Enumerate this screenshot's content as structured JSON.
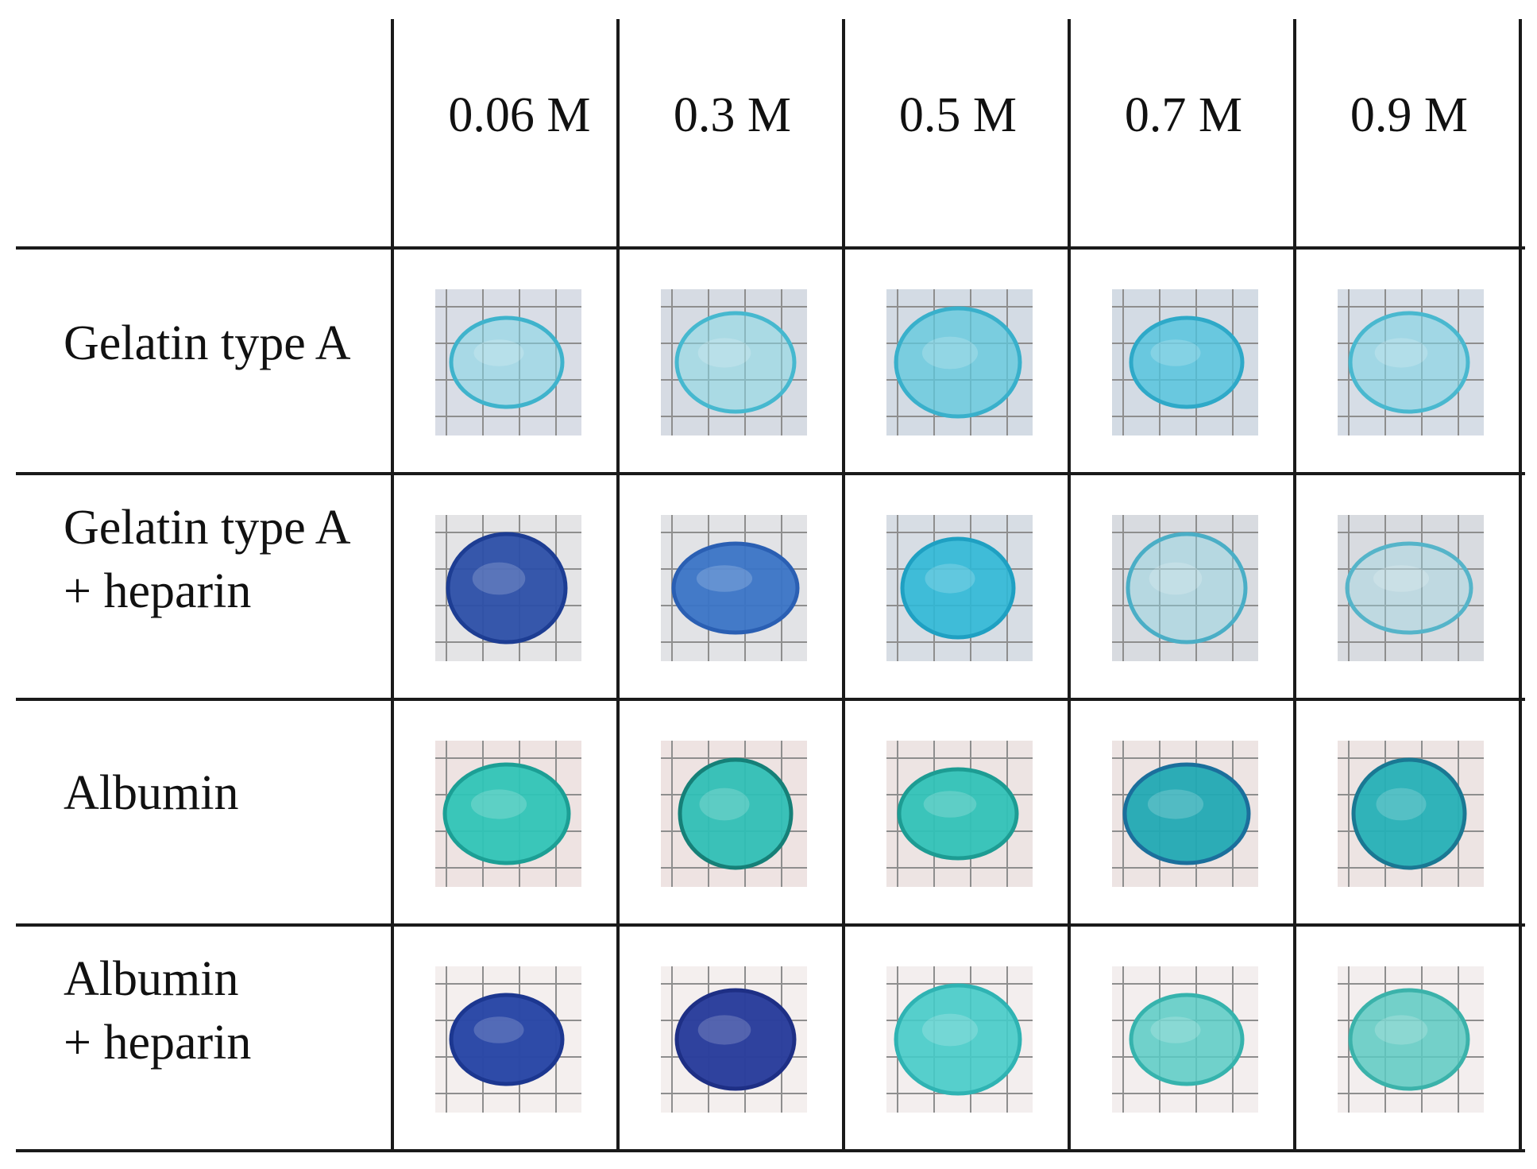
{
  "table": {
    "columns": [
      "0.06 M",
      "0.3 M",
      "0.5 M",
      "0.7 M",
      "0.9 M"
    ],
    "rows": [
      {
        "label_lines": [
          "Gelatin type A"
        ]
      },
      {
        "label_lines": [
          "Gelatin type A",
          "+ heparin"
        ]
      },
      {
        "label_lines": [
          "Albumin"
        ]
      },
      {
        "label_lines": [
          "Albumin",
          "+ heparin"
        ]
      }
    ]
  },
  "samples": [
    [
      {
        "fill": "#7fd6e6",
        "stroke": "#3fb3cc",
        "bg": "#d9dde6",
        "opacity": 0.55
      },
      {
        "fill": "#86d8e6",
        "stroke": "#46b8cf",
        "bg": "#d6dbe3",
        "opacity": 0.55
      },
      {
        "fill": "#5cc8de",
        "stroke": "#39b0cb",
        "bg": "#d3dbe4",
        "opacity": 0.75
      },
      {
        "fill": "#4fc3dd",
        "stroke": "#2ea9c8",
        "bg": "#d3dbe4",
        "opacity": 0.8
      },
      {
        "fill": "#7dd3e4",
        "stroke": "#49b8cf",
        "bg": "#d6dde6",
        "opacity": 0.6
      }
    ],
    [
      {
        "fill": "#2c4fa8",
        "stroke": "#1d3d93",
        "bg": "#e4e4e6",
        "opacity": 0.95
      },
      {
        "fill": "#3a74c6",
        "stroke": "#2a5fb3",
        "bg": "#e2e3e6",
        "opacity": 0.95
      },
      {
        "fill": "#2fb8d6",
        "stroke": "#1fa0c2",
        "bg": "#d7dde4",
        "opacity": 0.9
      },
      {
        "fill": "#8fd4e2",
        "stroke": "#4aaec6",
        "bg": "#d8dbe0",
        "opacity": 0.45
      },
      {
        "fill": "#9ad7e4",
        "stroke": "#55b4c9",
        "bg": "#d8dbe0",
        "opacity": 0.4
      }
    ],
    [
      {
        "fill": "#2fc4b6",
        "stroke": "#1c9f95",
        "bg": "#eee3e2",
        "opacity": 0.95
      },
      {
        "fill": "#2fbfb5",
        "stroke": "#168078",
        "bg": "#eee3e2",
        "opacity": 0.95
      },
      {
        "fill": "#31c2b7",
        "stroke": "#1d9c93",
        "bg": "#ede4e3",
        "opacity": 0.95
      },
      {
        "fill": "#22a9b3",
        "stroke": "#1b6f9c",
        "bg": "#ede4e3",
        "opacity": 0.95
      },
      {
        "fill": "#26b0b6",
        "stroke": "#1a7893",
        "bg": "#ede4e3",
        "opacity": 0.95
      }
    ],
    [
      {
        "fill": "#2a47a6",
        "stroke": "#1c3790",
        "bg": "#f4efee",
        "opacity": 0.98
      },
      {
        "fill": "#2b3e9c",
        "stroke": "#1e2f85",
        "bg": "#f4efee",
        "opacity": 0.98
      },
      {
        "fill": "#45cbc8",
        "stroke": "#2fb3b3",
        "bg": "#f3eeee",
        "opacity": 0.9
      },
      {
        "fill": "#58cbc4",
        "stroke": "#36b3ad",
        "bg": "#f3eeee",
        "opacity": 0.85
      },
      {
        "fill": "#5ccac2",
        "stroke": "#3bb2aa",
        "bg": "#f3eeee",
        "opacity": 0.85
      }
    ]
  ]
}
